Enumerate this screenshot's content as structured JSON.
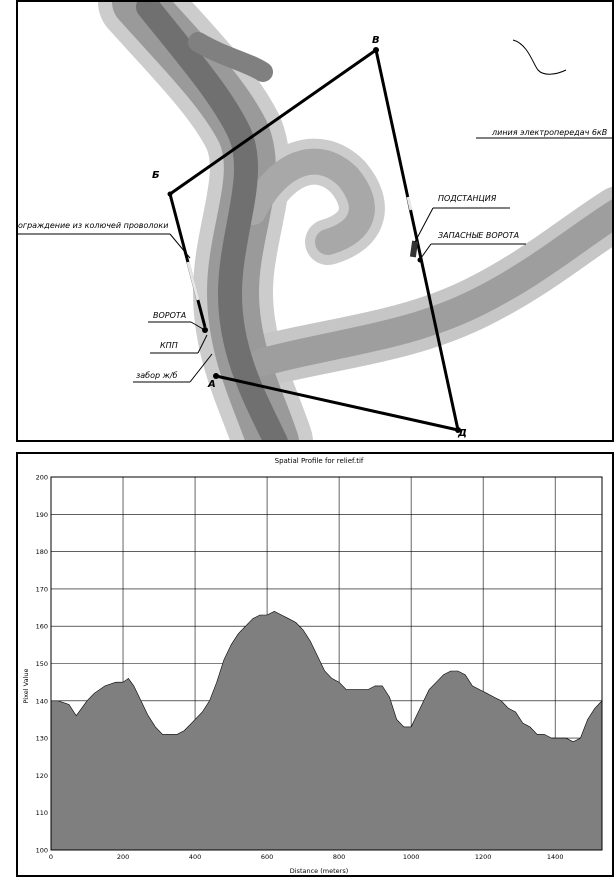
{
  "map": {
    "points": {
      "v": "В",
      "b": "Б",
      "a": "А",
      "d": "Д"
    },
    "labels": {
      "power_line": "линия электропередач 6кВ",
      "fence_barbed": "ограждение из колючей проволоки",
      "substation": "ПОДСТАНЦИЯ",
      "spare_gate": "ЗАПАСНЫЕ ВОРОТА",
      "gate": "ВОРОТА",
      "kpp": "КПП",
      "fence_rc": "забор ж/б"
    },
    "colors": {
      "relief_dark": "#6f6f6f",
      "relief_mid": "#9a9a9a",
      "relief_light": "#c6c6c6",
      "boundary": "#000000"
    }
  },
  "chart_data": {
    "type": "area",
    "title": "Spatial Profile for relief.tif",
    "xlabel": "Distance (meters)",
    "ylabel": "Pixel Value",
    "xlim": [
      0,
      1530
    ],
    "ylim": [
      100,
      200
    ],
    "xticks": [
      0,
      200,
      400,
      600,
      800,
      1000,
      1200,
      1400
    ],
    "yticks": [
      100,
      110,
      120,
      130,
      140,
      150,
      160,
      170,
      180,
      190,
      200
    ],
    "grid": true,
    "fill_color": "#7f7f7f",
    "x": [
      0,
      20,
      50,
      70,
      85,
      100,
      120,
      150,
      180,
      200,
      215,
      230,
      250,
      270,
      290,
      310,
      330,
      350,
      370,
      390,
      420,
      440,
      460,
      480,
      500,
      520,
      540,
      560,
      580,
      600,
      620,
      640,
      660,
      680,
      700,
      720,
      740,
      760,
      780,
      800,
      820,
      840,
      860,
      880,
      900,
      920,
      940,
      960,
      980,
      1000,
      1020,
      1035,
      1050,
      1070,
      1090,
      1110,
      1130,
      1150,
      1170,
      1190,
      1210,
      1230,
      1250,
      1270,
      1290,
      1310,
      1330,
      1350,
      1370,
      1390,
      1410,
      1430,
      1450,
      1470,
      1490,
      1510,
      1530
    ],
    "values": [
      140,
      140,
      139,
      136,
      138,
      140,
      142,
      144,
      145,
      145,
      146,
      144,
      140,
      136,
      133,
      131,
      131,
      131,
      132,
      134,
      137,
      140,
      145,
      151,
      155,
      158,
      160,
      162,
      163,
      163,
      164,
      163,
      162,
      161,
      159,
      156,
      152,
      148,
      146,
      145,
      143,
      143,
      143,
      143,
      144,
      144,
      141,
      135,
      133,
      133,
      137,
      140,
      143,
      145,
      147,
      148,
      148,
      147,
      144,
      143,
      142,
      141,
      140,
      138,
      137,
      134,
      133,
      131,
      131,
      130,
      130,
      130,
      129,
      130,
      135,
      138,
      140
    ]
  }
}
